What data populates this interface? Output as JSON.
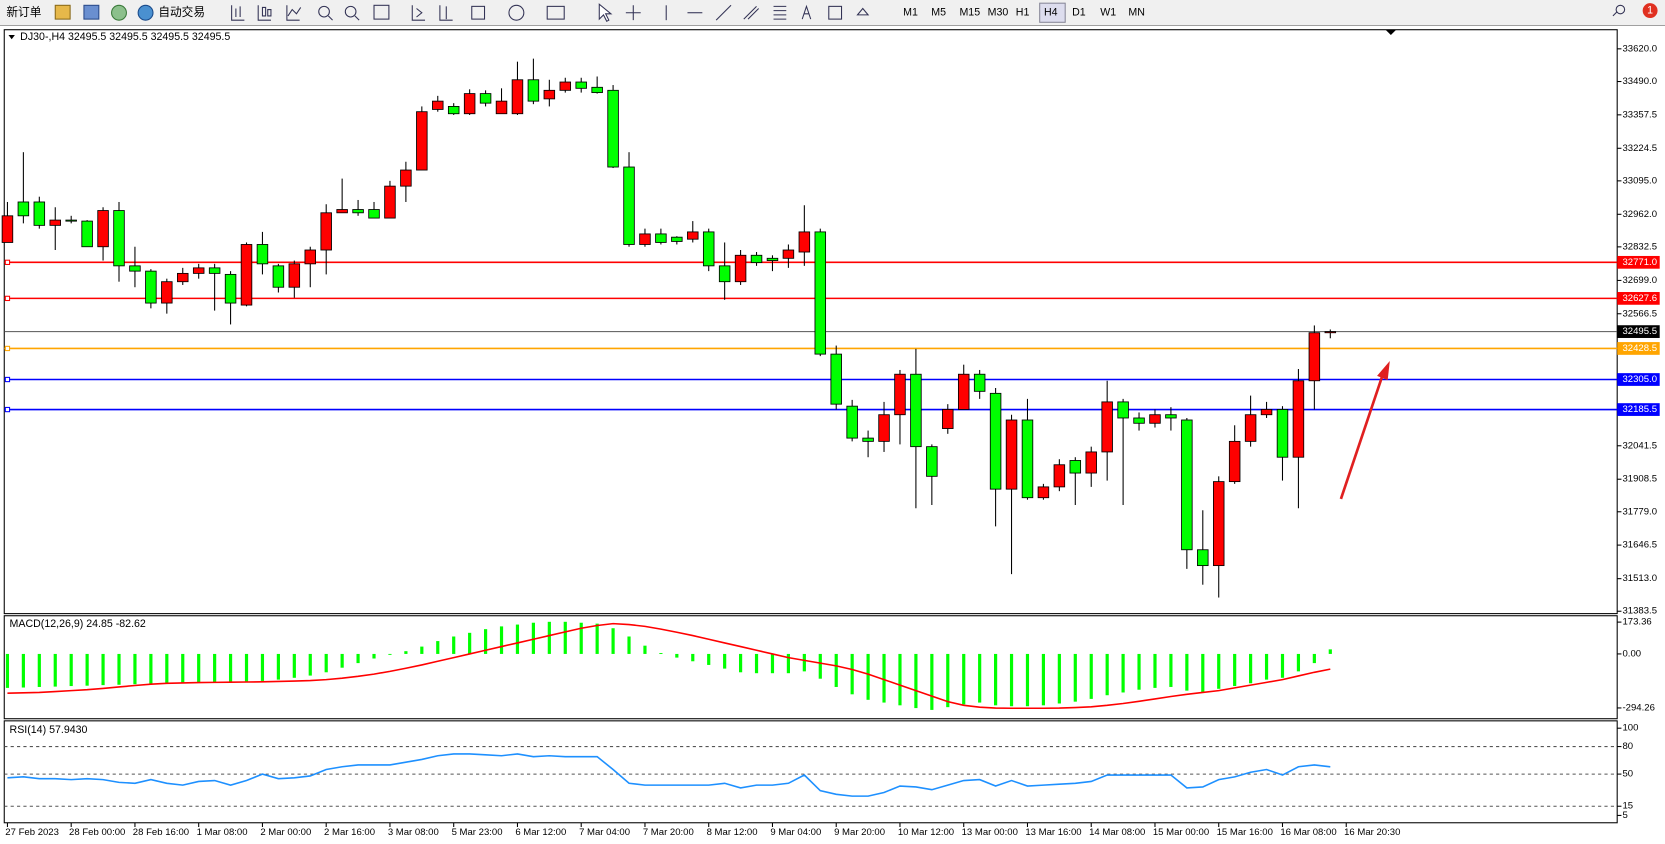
{
  "toolbar": {
    "new_order": "新订单",
    "auto_trading": "自动交易",
    "timeframes": [
      "M1",
      "M5",
      "M15",
      "M30",
      "H1",
      "H4",
      "D1",
      "W1",
      "MN"
    ],
    "active_timeframe": "H4",
    "notifications": "1"
  },
  "chart_data": [
    {
      "type": "candlestick",
      "title": "DJ30-,H4  32495.5 32495.5 32495.5 32495.5",
      "up_color": "#ff0000",
      "down_color": "#00ff00",
      "time_labels": [
        "27 Feb 2023",
        "28 Feb 00:00",
        "28 Feb 16:00",
        "1 Mar 08:00",
        "2 Mar 00:00",
        "2 Mar 16:00",
        "3 Mar 08:00",
        "5 Mar 23:00",
        "6 Mar 12:00",
        "7 Mar 04:00",
        "7 Mar 20:00",
        "8 Mar 12:00",
        "9 Mar 04:00",
        "9 Mar 20:00",
        "10 Mar 12:00",
        "13 Mar 00:00",
        "13 Mar 16:00",
        "14 Mar 08:00",
        "15 Mar 00:00",
        "15 Mar 16:00",
        "16 Mar 08:00",
        "16 Mar 20:30"
      ],
      "open": [
        32850,
        33011,
        33011,
        32918,
        32939,
        32935,
        32833,
        32977,
        32757,
        32736,
        32609,
        32694,
        32727,
        32749,
        32723,
        32601,
        32842,
        32757,
        32672,
        32765,
        32820,
        32968,
        32981,
        32981,
        32947,
        33074,
        33138,
        33379,
        33391,
        33362,
        33442,
        33362,
        33362,
        33497,
        33421,
        33455,
        33488,
        33467,
        33455,
        33150,
        32842,
        32884,
        32871,
        32863,
        32892,
        32757,
        32694,
        32799,
        32787,
        32787,
        32812,
        32892,
        32406,
        32199,
        32072,
        32059,
        32165,
        32326,
        32038,
        32110,
        32186,
        32326,
        32250,
        31869,
        32144,
        31835,
        31878,
        31983,
        31933,
        32017,
        32216,
        32152,
        32131,
        32165,
        32144,
        31628,
        31565,
        31899,
        32059,
        32165,
        32186,
        31996,
        32300,
        32491
      ],
      "high": [
        33011,
        33209,
        33032,
        32990,
        32956,
        32939,
        32990,
        33011,
        32833,
        32744,
        32706,
        32749,
        32765,
        32765,
        32736,
        32850,
        32892,
        32765,
        32778,
        32833,
        33002,
        33104,
        33019,
        33011,
        33095,
        33171,
        33391,
        33433,
        33404,
        33459,
        33455,
        33463,
        33569,
        33581,
        33497,
        33505,
        33505,
        33510,
        33476,
        33209,
        32905,
        32905,
        32875,
        32935,
        32905,
        32850,
        32820,
        32812,
        32799,
        32842,
        32998,
        32905,
        32440,
        32224,
        32102,
        32216,
        32343,
        32427,
        32047,
        32207,
        32364,
        32343,
        32271,
        32165,
        32228,
        31890,
        31988,
        31996,
        32038,
        32300,
        32228,
        32174,
        32186,
        32195,
        32152,
        31785,
        31920,
        32123,
        32241,
        32216,
        32199,
        32347,
        32520,
        32504
      ],
      "low": [
        32850,
        32926,
        32905,
        32820,
        32926,
        32833,
        32778,
        32694,
        32672,
        32588,
        32567,
        32681,
        32706,
        32579,
        32524,
        32596,
        32723,
        32651,
        32630,
        32672,
        32723,
        32968,
        32956,
        32947,
        32947,
        33011,
        33138,
        33370,
        33357,
        33357,
        33391,
        33362,
        33357,
        33400,
        33391,
        33446,
        33446,
        33442,
        33146,
        32833,
        32833,
        32842,
        32842,
        32850,
        32736,
        32622,
        32681,
        32757,
        32736,
        32749,
        32757,
        32398,
        32186,
        32059,
        31996,
        32017,
        32047,
        31793,
        31806,
        32089,
        32186,
        32228,
        31721,
        31531,
        31827,
        31827,
        31861,
        31806,
        31878,
        31903,
        31806,
        32102,
        32114,
        32102,
        31552,
        31489,
        31438,
        31890,
        32038,
        32152,
        31903,
        31793,
        32186,
        32469
      ],
      "close": [
        32956,
        32956,
        32918,
        32939,
        32935,
        32833,
        32977,
        32757,
        32736,
        32609,
        32694,
        32727,
        32749,
        32727,
        32609,
        32842,
        32765,
        32672,
        32765,
        32820,
        32968,
        32981,
        32968,
        32947,
        33074,
        33138,
        33370,
        33412,
        33362,
        33442,
        33404,
        33412,
        33497,
        33412,
        33455,
        33488,
        33463,
        33446,
        33150,
        32842,
        32884,
        32850,
        32854,
        32892,
        32757,
        32694,
        32799,
        32770,
        32778,
        32820,
        32892,
        32406,
        32207,
        32072,
        32059,
        32165,
        32326,
        32038,
        31920,
        32186,
        32326,
        32258,
        31869,
        32144,
        31835,
        31878,
        31966,
        31933,
        32017,
        32216,
        32152,
        32131,
        32165,
        32152,
        31628,
        31565,
        31899,
        32059,
        32165,
        32186,
        31996,
        32300,
        32491,
        32495.5
      ],
      "ylim": [
        31374,
        33696
      ],
      "yticks": [
        {
          "value": 33620,
          "label": "33620.0"
        },
        {
          "value": 33490,
          "label": "33490.0"
        },
        33357.5,
        33224.5,
        {
          "value": 33095,
          "label": "33095.0"
        },
        {
          "value": 32962,
          "label": "32962.0"
        },
        32832.5,
        {
          "value": 32699,
          "label": "32699.0"
        },
        32566.5,
        32041.5,
        31908.5,
        {
          "value": 31779,
          "label": "31779.0"
        },
        31646.5,
        {
          "value": 31513,
          "label": "31513.0"
        },
        31383.5
      ],
      "levels": [
        {
          "value": 32771,
          "label": "32771.0",
          "color": "#ff0000"
        },
        {
          "value": 32627.6,
          "label": "32627.6",
          "color": "#ff0000"
        },
        {
          "value": 32428.5,
          "label": "32428.5",
          "color": "#ffa500"
        },
        {
          "value": 32305,
          "label": "32305.0",
          "color": "#0000ff"
        },
        {
          "value": 32185.5,
          "label": "32185.5",
          "color": "#0000ff"
        }
      ],
      "current_price": 32495.5
    },
    {
      "type": "macd",
      "title": "MACD(12,26,9) 24.85 -82.62",
      "ylim": [
        -353,
        208
      ],
      "yticks": [
        173.36,
        {
          "value": 0,
          "label": "0.00"
        },
        -294.26
      ],
      "histogram": {
        "color": "#00ff00",
        "values": [
          -185,
          -183,
          -180,
          -178,
          -175,
          -173,
          -170,
          -168,
          -165,
          -163,
          -160,
          -158,
          -156,
          -154,
          -152,
          -150,
          -147,
          -140,
          -130,
          -118,
          -100,
          -75,
          -50,
          -25,
          -5,
          15,
          40,
          70,
          95,
          115,
          135,
          150,
          160,
          170,
          175,
          175,
          170,
          165,
          140,
          95,
          45,
          5,
          -20,
          -40,
          -60,
          -80,
          -100,
          -105,
          -105,
          -105,
          -95,
          -135,
          -180,
          -220,
          -250,
          -265,
          -280,
          -295,
          -305,
          -290,
          -275,
          -265,
          -280,
          -285,
          -285,
          -280,
          -270,
          -260,
          -245,
          -225,
          -210,
          -195,
          -185,
          -180,
          -200,
          -210,
          -190,
          -175,
          -160,
          -140,
          -130,
          -95,
          -50,
          24.85
        ]
      },
      "signal": {
        "color": "#ff0000",
        "values": [
          -214,
          -212,
          -210,
          -205,
          -200,
          -195,
          -188,
          -180,
          -172,
          -165,
          -160,
          -158,
          -156,
          -155,
          -154,
          -153,
          -152,
          -150,
          -148,
          -145,
          -140,
          -132,
          -122,
          -110,
          -95,
          -78,
          -60,
          -40,
          -20,
          0,
          20,
          40,
          60,
          80,
          100,
          120,
          140,
          155,
          165,
          160,
          150,
          135,
          118,
          100,
          80,
          60,
          40,
          20,
          0,
          -20,
          -35,
          -50,
          -65,
          -85,
          -110,
          -140,
          -170,
          -200,
          -230,
          -260,
          -280,
          -290,
          -295,
          -296,
          -296,
          -296,
          -295,
          -292,
          -288,
          -280,
          -270,
          -258,
          -245,
          -232,
          -220,
          -210,
          -200,
          -185,
          -170,
          -155,
          -140,
          -120,
          -100,
          -82.62
        ]
      }
    },
    {
      "type": "rsi",
      "title": "RSI(14) 57.9430",
      "ylim": [
        -3,
        108
      ],
      "yticks": [
        100,
        80,
        50,
        15,
        5
      ],
      "levels": [
        80,
        50,
        15
      ],
      "color": "#1e90ff",
      "values": [
        46,
        47,
        45,
        45,
        44,
        45,
        44,
        41,
        40,
        44,
        40,
        38,
        42,
        43,
        38,
        43,
        50,
        45,
        46,
        48,
        55,
        58,
        60,
        60,
        60,
        63,
        66,
        70,
        72,
        72,
        71,
        70,
        72,
        69,
        70,
        69,
        69,
        69,
        55,
        40,
        38,
        38,
        38,
        38,
        38,
        40,
        35,
        38,
        38,
        40,
        49,
        32,
        28,
        26,
        26,
        30,
        37,
        36,
        33,
        38,
        43,
        44,
        37,
        43,
        37,
        38,
        39,
        40,
        42,
        49,
        49,
        49,
        49,
        49,
        35,
        36,
        44,
        47,
        52,
        55,
        49,
        58,
        60,
        57.943
      ]
    }
  ]
}
